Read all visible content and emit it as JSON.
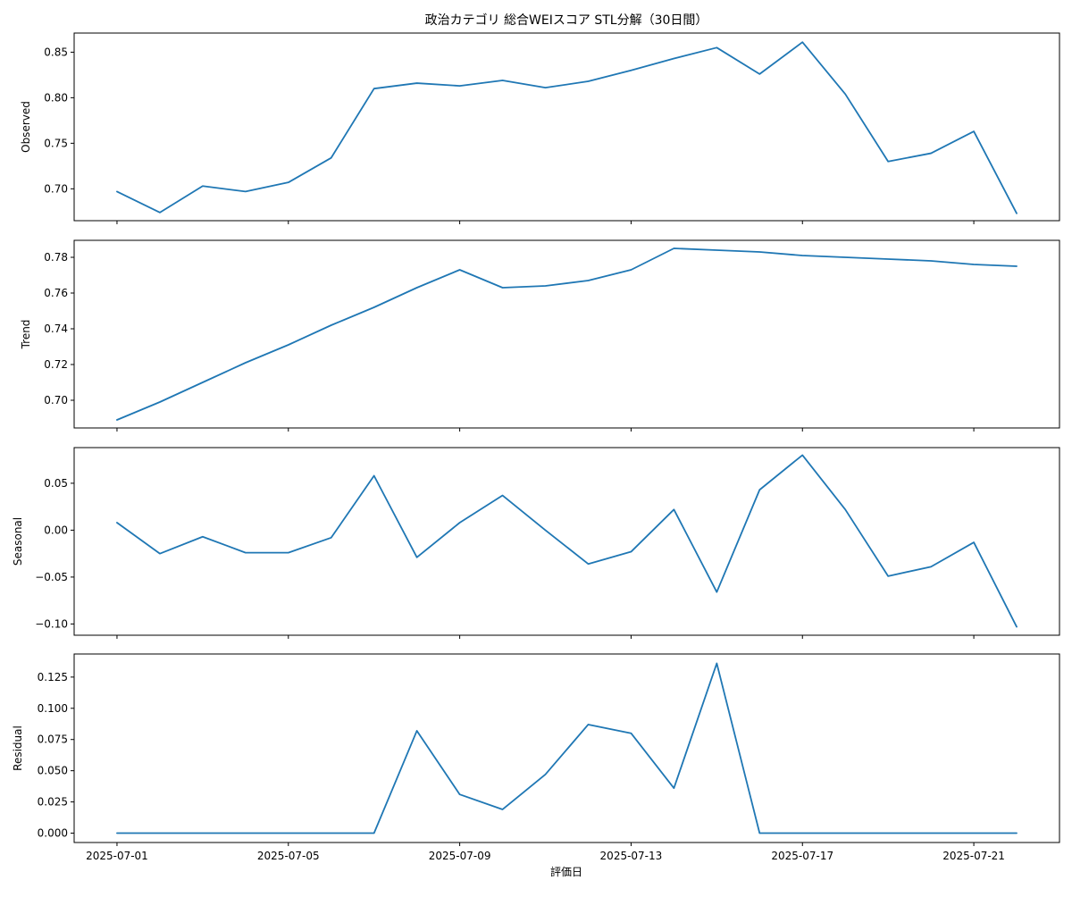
{
  "chart_data": {
    "type": "line",
    "title": "政治カテゴリ 総合WEIスコア STL分解（30日間）",
    "xlabel": "評価日",
    "line_color": "#1f77b4",
    "dates": [
      "2025-07-01",
      "2025-07-02",
      "2025-07-03",
      "2025-07-04",
      "2025-07-05",
      "2025-07-06",
      "2025-07-07",
      "2025-07-08",
      "2025-07-09",
      "2025-07-10",
      "2025-07-11",
      "2025-07-12",
      "2025-07-13",
      "2025-07-14",
      "2025-07-15",
      "2025-07-16",
      "2025-07-17",
      "2025-07-18",
      "2025-07-19",
      "2025-07-20",
      "2025-07-21",
      "2025-07-22"
    ],
    "x_ticks": [
      "2025-07-01",
      "2025-07-05",
      "2025-07-09",
      "2025-07-13",
      "2025-07-17",
      "2025-07-21"
    ],
    "x_range": [
      "2025-06-30",
      "2025-07-23"
    ],
    "panels": [
      {
        "name": "observed",
        "ylabel": "Observed",
        "ylim": [
          0.665,
          0.871
        ],
        "yticks": [
          0.7,
          0.75,
          0.8,
          0.85
        ],
        "tick_labels": [
          "0.70",
          "0.75",
          "0.80",
          "0.85"
        ],
        "values": [
          0.697,
          0.674,
          0.703,
          0.697,
          0.707,
          0.734,
          0.81,
          0.816,
          0.813,
          0.819,
          0.811,
          0.818,
          0.83,
          0.843,
          0.855,
          0.826,
          0.861,
          0.804,
          0.73,
          0.739,
          0.763,
          0.673
        ]
      },
      {
        "name": "trend",
        "ylabel": "Trend",
        "ylim": [
          0.6845,
          0.7895
        ],
        "yticks": [
          0.7,
          0.72,
          0.74,
          0.76,
          0.78
        ],
        "tick_labels": [
          "0.70",
          "0.72",
          "0.74",
          "0.76",
          "0.78"
        ],
        "values": [
          0.689,
          0.699,
          0.71,
          0.721,
          0.731,
          0.742,
          0.752,
          0.763,
          0.773,
          0.763,
          0.764,
          0.767,
          0.773,
          0.785,
          0.784,
          0.783,
          0.781,
          0.78,
          0.779,
          0.778,
          0.776,
          0.775
        ]
      },
      {
        "name": "seasonal",
        "ylabel": "Seasonal",
        "ylim": [
          -0.112,
          0.088
        ],
        "yticks": [
          -0.1,
          -0.05,
          0.0,
          0.05
        ],
        "tick_labels": [
          "−0.10",
          "−0.05",
          "0.00",
          "0.05"
        ],
        "values": [
          0.008,
          -0.025,
          -0.007,
          -0.024,
          -0.024,
          -0.008,
          0.058,
          -0.029,
          0.008,
          0.037,
          0.0,
          -0.036,
          -0.023,
          0.022,
          -0.066,
          0.043,
          0.08,
          0.022,
          -0.049,
          -0.039,
          -0.013,
          -0.103
        ]
      },
      {
        "name": "residual",
        "ylabel": "Residual",
        "ylim": [
          -0.0075,
          0.1435
        ],
        "yticks": [
          0.0,
          0.025,
          0.05,
          0.075,
          0.1,
          0.125
        ],
        "tick_labels": [
          "0.000",
          "0.025",
          "0.050",
          "0.075",
          "0.100",
          "0.125"
        ],
        "values": [
          0.0,
          0.0,
          0.0,
          0.0,
          0.0,
          0.0,
          0.0,
          0.082,
          0.031,
          0.019,
          0.047,
          0.087,
          0.08,
          0.036,
          0.136,
          0.0,
          0.0,
          0.0,
          0.0,
          0.0,
          0.0,
          0.0
        ]
      }
    ]
  }
}
